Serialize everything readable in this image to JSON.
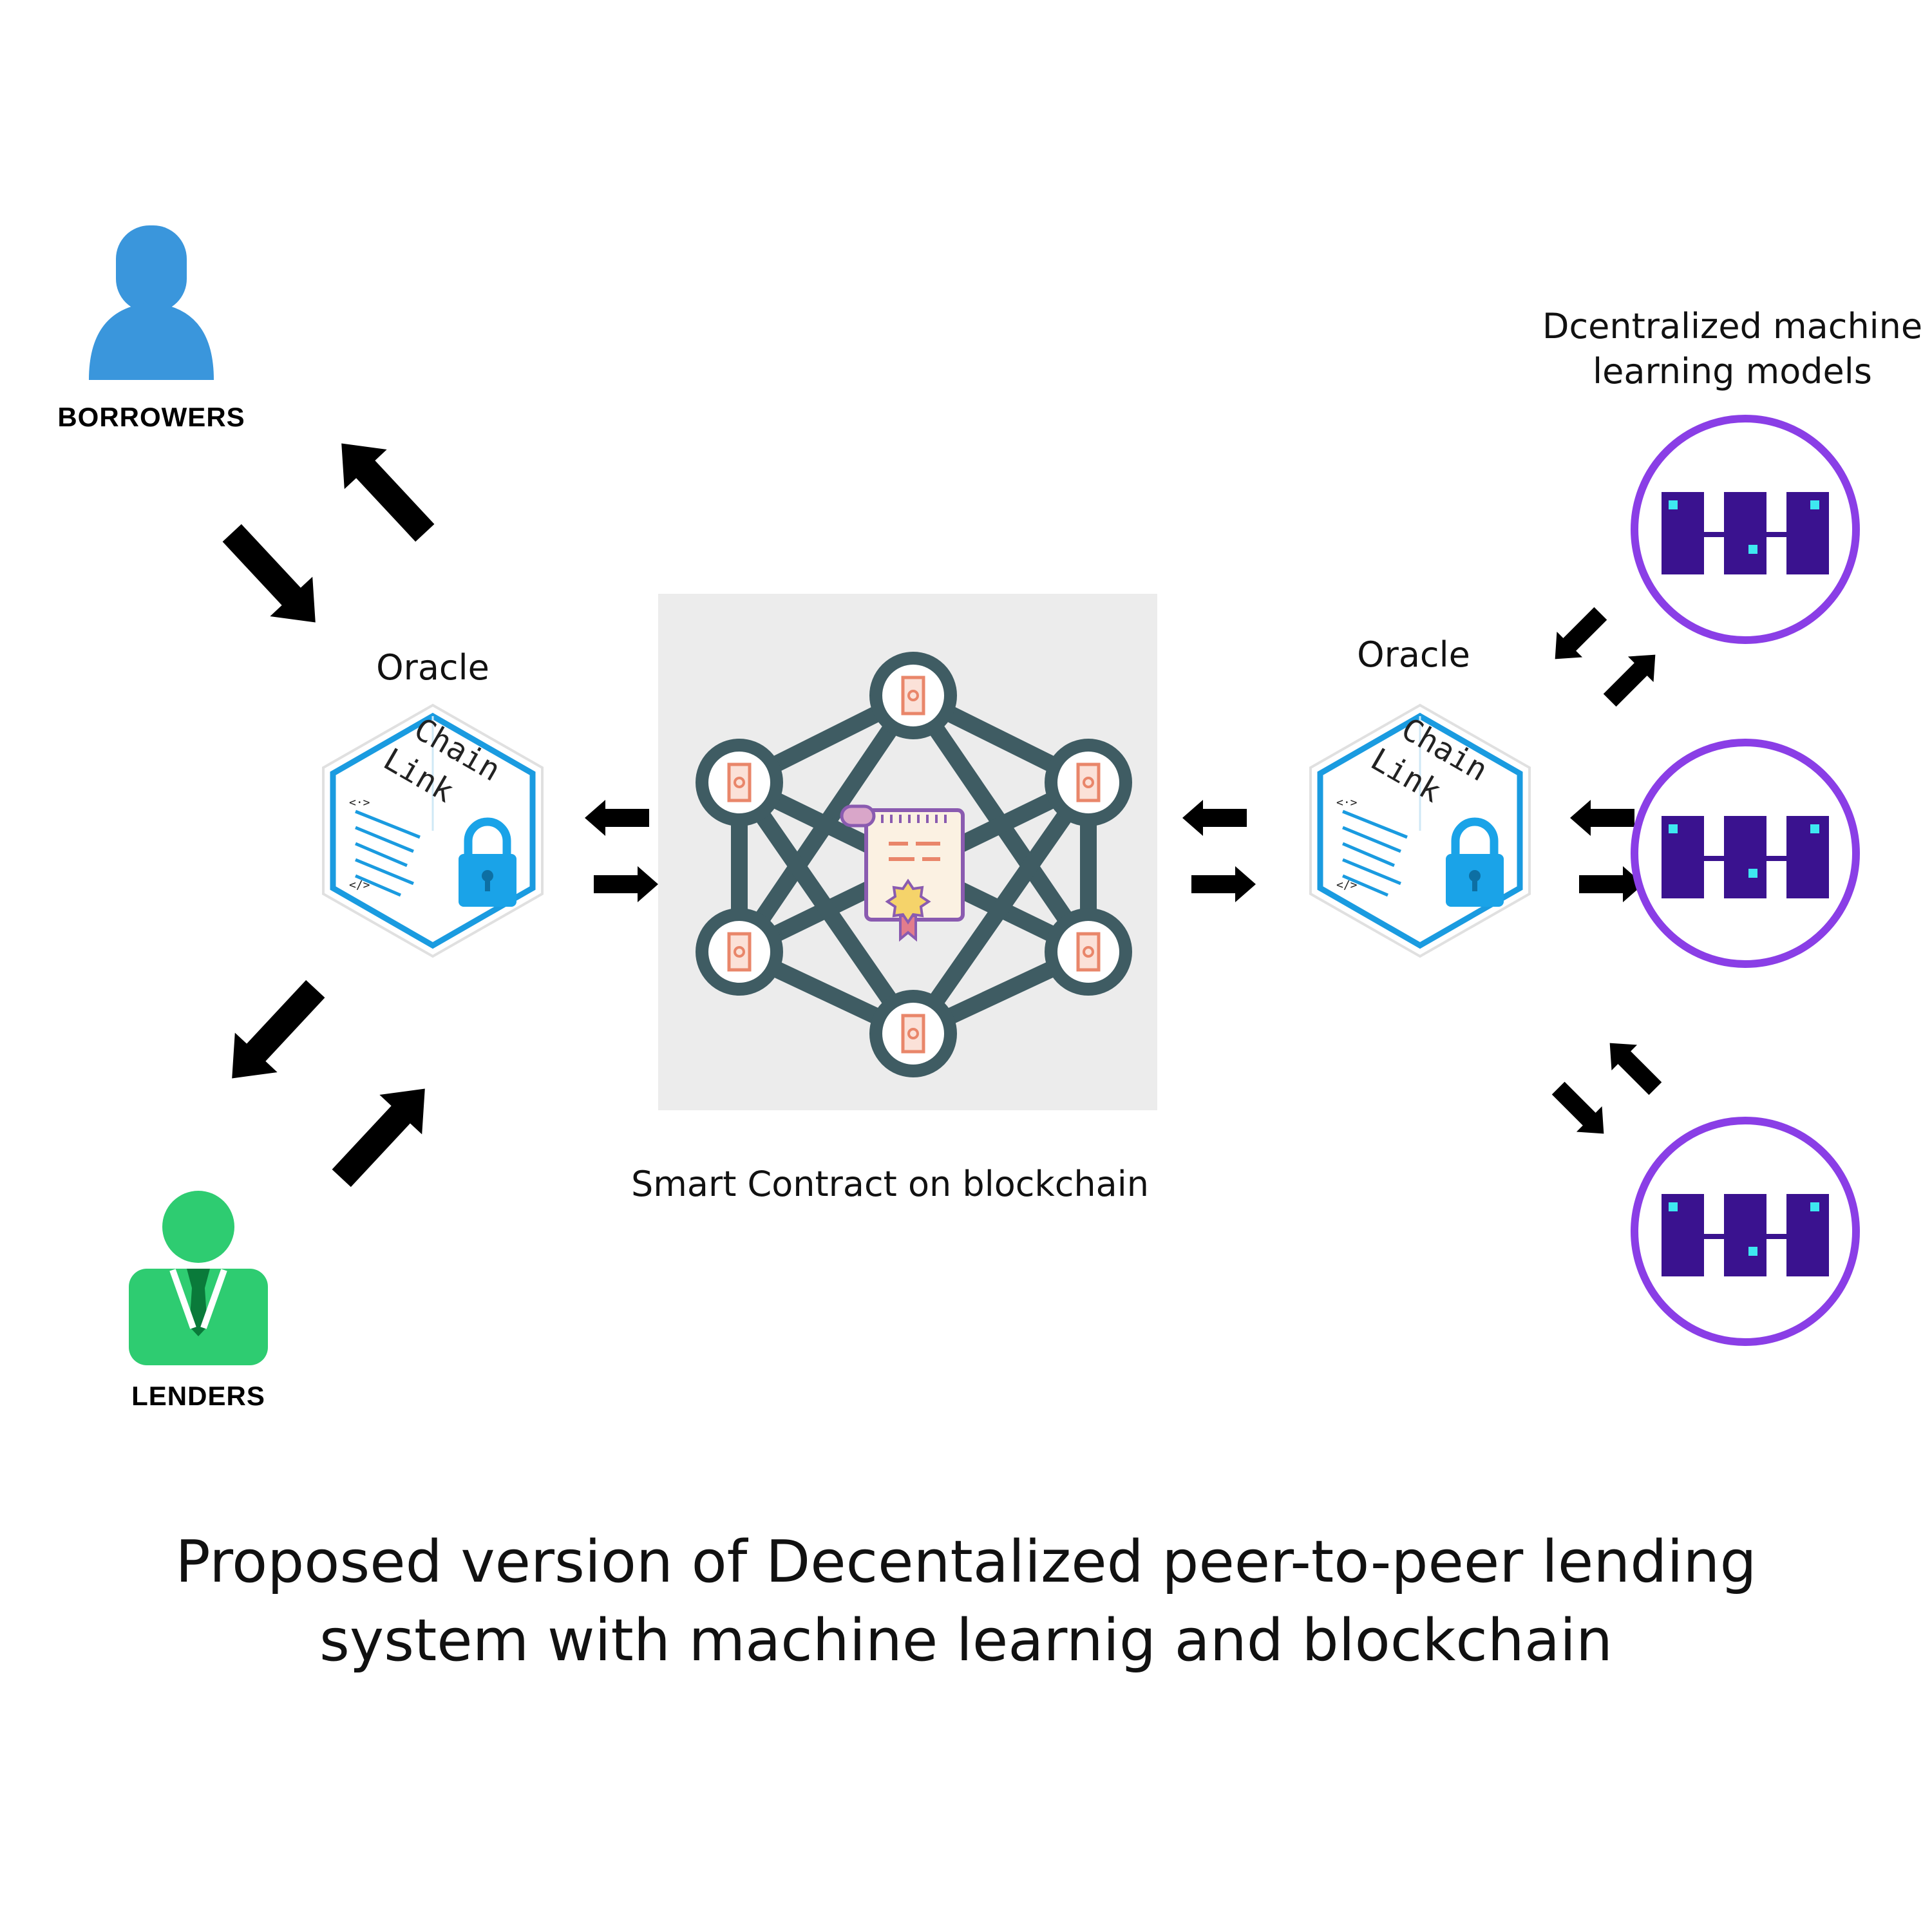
{
  "actors": {
    "borrowers": "BORROWERS",
    "lenders": "LENDERS"
  },
  "oracle_left": {
    "label": "Oracle",
    "cube_text_1": "Chain",
    "cube_text_2": "Link",
    "code_open": "<·>",
    "code_close": "</>"
  },
  "oracle_right": {
    "label": "Oracle",
    "cube_text_1": "Chain",
    "cube_text_2": "Link",
    "code_open": "<·>",
    "code_close": "</>"
  },
  "smart_contract": {
    "label": "Smart Contract on blockchain"
  },
  "ml_models": {
    "label_line1": "Dcentralized machine",
    "label_line2": "learning models"
  },
  "caption": {
    "line1": "Proposed version of Decentalized peer-to-peer lending",
    "line2": "system with machine learnig and blockchain"
  },
  "colors": {
    "borrower": "#3a96dc",
    "lender": "#2ecc71",
    "oracle_border": "#1a9be0",
    "lock": "#1aa3e8",
    "network": "#3f5c63",
    "node_icon": "#e9866a",
    "ml_ring": "#8a3ee6",
    "ml_block": "#3a128f",
    "ml_dot": "#3ee8f0",
    "arrow": "#000000"
  }
}
